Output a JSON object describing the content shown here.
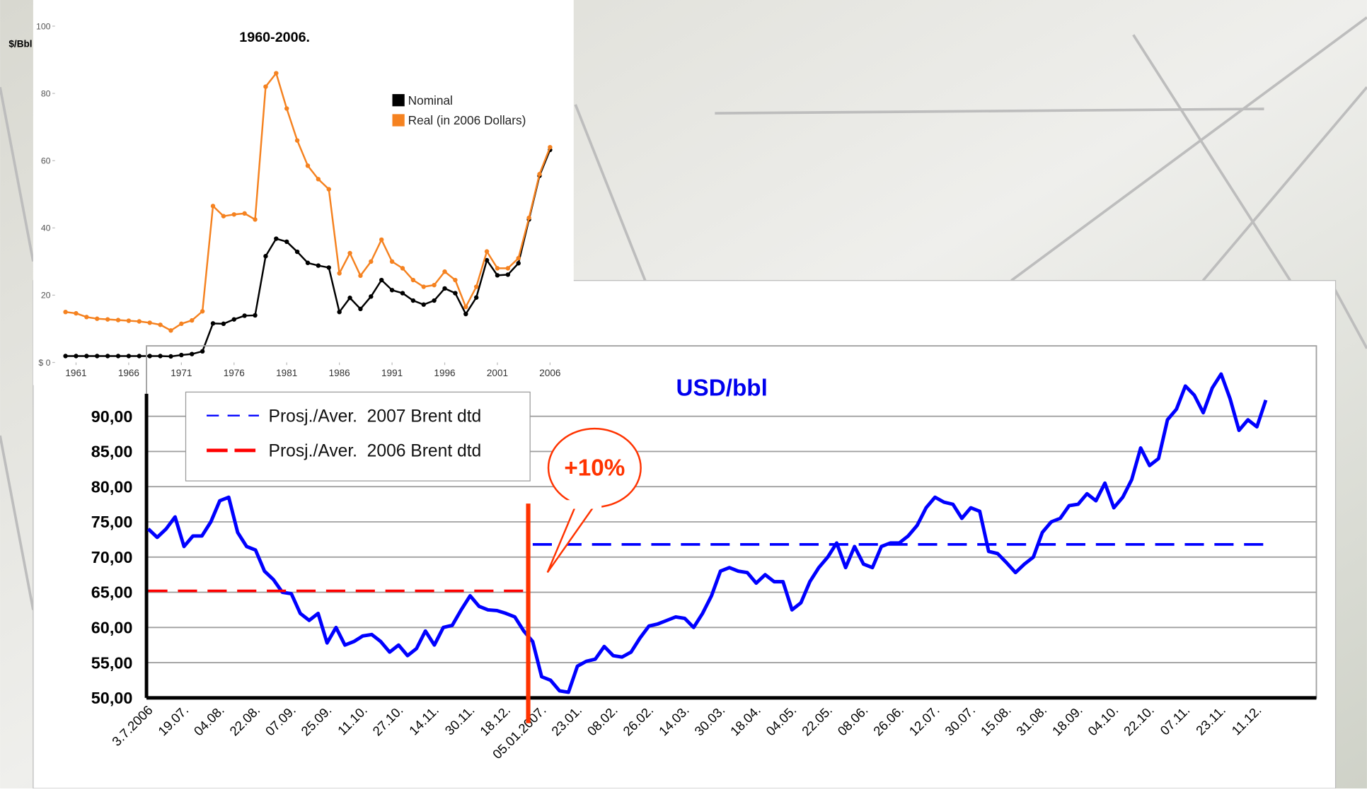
{
  "chart_data": [
    {
      "type": "line",
      "title": "1960-2006.",
      "y_label": "$/Bbl",
      "x": [
        1960,
        1961,
        1962,
        1963,
        1964,
        1965,
        1966,
        1967,
        1968,
        1969,
        1970,
        1971,
        1972,
        1973,
        1974,
        1975,
        1976,
        1977,
        1978,
        1979,
        1980,
        1981,
        1982,
        1983,
        1984,
        1985,
        1986,
        1987,
        1988,
        1989,
        1990,
        1991,
        1992,
        1993,
        1994,
        1995,
        1996,
        1997,
        1998,
        1999,
        2000,
        2001,
        2002,
        2003,
        2004,
        2005,
        2006
      ],
      "xlim": [
        1959,
        2007
      ],
      "xticks": [
        1961,
        1966,
        1971,
        1976,
        1981,
        1986,
        1991,
        1996,
        2001,
        2006
      ],
      "ylim": [
        0,
        100
      ],
      "yticks": [
        {
          "value": 0,
          "label": "$ 0"
        },
        20,
        40,
        60,
        80,
        100
      ],
      "grid": false,
      "legend": "upper right",
      "markers": true,
      "series": [
        {
          "name": "Nominal",
          "color": "#000000",
          "values": [
            1.9,
            1.9,
            1.9,
            1.9,
            1.9,
            1.9,
            1.9,
            1.9,
            1.9,
            1.9,
            1.8,
            2.2,
            2.5,
            3.3,
            11.6,
            11.5,
            12.8,
            13.9,
            14.0,
            31.6,
            36.8,
            35.9,
            32.9,
            29.6,
            28.8,
            28.2,
            15.0,
            19.2,
            15.9,
            19.6,
            24.5,
            21.5,
            20.6,
            18.4,
            17.2,
            18.4,
            22.0,
            20.6,
            14.4,
            19.3,
            30.4,
            25.9,
            26.1,
            29.5,
            42.5,
            55.5,
            63.2
          ]
        },
        {
          "name": "Real (in 2006 Dollars)",
          "color": "#f58220",
          "values": [
            15.0,
            14.6,
            13.5,
            13.0,
            12.8,
            12.6,
            12.4,
            12.2,
            11.8,
            11.2,
            9.5,
            11.5,
            12.5,
            15.2,
            46.5,
            43.5,
            44.0,
            44.3,
            42.5,
            82.0,
            86.0,
            75.5,
            66.0,
            58.5,
            54.5,
            51.5,
            26.5,
            32.5,
            25.8,
            30.0,
            36.5,
            30.0,
            28.0,
            24.5,
            22.5,
            23.0,
            27.0,
            24.5,
            16.5,
            22.5,
            33.0,
            28.0,
            28.0,
            31.0,
            43.0,
            56.0,
            64.0
          ]
        }
      ]
    },
    {
      "type": "line",
      "title": "USD/bbl",
      "annotation": "+10%",
      "categories": [
        "3.7.2006",
        null,
        null,
        null,
        "19.07.",
        null,
        null,
        null,
        "04.08.",
        null,
        null,
        null,
        "22.08.",
        null,
        null,
        null,
        "07.09.",
        null,
        null,
        null,
        "25.09.",
        null,
        null,
        null,
        "11.10.",
        null,
        null,
        null,
        "27.10.",
        null,
        null,
        null,
        "14.11.",
        null,
        null,
        null,
        "30.11.",
        null,
        null,
        null,
        "18.12.",
        null,
        null,
        null,
        "05.01.2007.",
        null,
        null,
        null,
        "23.01.",
        null,
        null,
        null,
        "08.02.",
        null,
        null,
        null,
        "26.02.",
        null,
        null,
        null,
        "14.03.",
        null,
        null,
        null,
        "30.03.",
        null,
        null,
        null,
        "18.04.",
        null,
        null,
        null,
        "04.05.",
        null,
        null,
        null,
        "22.05.",
        null,
        null,
        null,
        "08.06.",
        null,
        null,
        null,
        "26.06.",
        null,
        null,
        null,
        "12.07.",
        null,
        null,
        null,
        "30.07.",
        null,
        null,
        null,
        "15.08.",
        null,
        null,
        null,
        "31.08.",
        null,
        null,
        null,
        "18.09.",
        null,
        null,
        null,
        "04.10.",
        null,
        null,
        null,
        "22.10.",
        null,
        null,
        null,
        "07.11.",
        null,
        null,
        null,
        "23.11.",
        null,
        null,
        null,
        "11.12.",
        null
      ],
      "ylim": [
        50,
        100
      ],
      "yticks": [
        {
          "value": 50,
          "label": "50,00"
        },
        {
          "value": 55,
          "label": "55,00"
        },
        {
          "value": 60,
          "label": "60,00"
        },
        {
          "value": 65,
          "label": "65,00"
        },
        {
          "value": 70,
          "label": "70,00"
        },
        {
          "value": 75,
          "label": "75,00"
        },
        {
          "value": 80,
          "label": "80,00"
        },
        {
          "value": 85,
          "label": "85,00"
        },
        {
          "value": 90,
          "label": "90,00"
        }
      ],
      "grid": true,
      "legend": "upper left",
      "series": [
        {
          "color": "#0000ff",
          "line_style": "solid",
          "values": [
            74,
            72.8,
            74,
            75.7,
            71.5,
            73,
            73,
            75,
            78,
            78.5,
            73.5,
            71.5,
            71,
            68,
            66.8,
            65,
            64.8,
            62,
            61,
            62,
            57.8,
            60,
            57.5,
            58,
            58.8,
            59,
            58,
            56.5,
            57.5,
            56,
            57,
            59.5,
            57.5,
            60,
            60.3,
            62.5,
            64.5,
            63,
            62.5,
            62.4,
            62,
            61.5,
            59.5,
            58,
            53,
            52.5,
            51,
            50.8,
            54.5,
            55.2,
            55.5,
            57.3,
            56,
            55.8,
            56.5,
            58.5,
            60.2,
            60.5,
            61,
            61.5,
            61.3,
            60,
            62,
            64.5,
            68,
            68.5,
            68,
            67.8,
            66.3,
            67.5,
            66.5,
            66.5,
            62.5,
            63.5,
            66.5,
            68.5,
            70,
            72,
            68.5,
            71.5,
            69,
            68.5,
            71.5,
            72,
            72,
            73,
            74.5,
            77,
            78.5,
            77.8,
            77.5,
            75.5,
            77,
            76.5,
            70.8,
            70.5,
            69.2,
            67.8,
            69,
            70,
            73.5,
            75,
            75.5,
            77.3,
            77.5,
            79,
            78,
            80.5,
            77,
            78.5,
            81,
            85.5,
            83,
            84,
            89.5,
            91,
            94.3,
            93,
            90.5,
            94,
            96,
            92.5,
            88,
            89.5,
            88.5,
            92.3
          ]
        },
        {
          "name": "Prosj./Aver.  2006 Brent dtd",
          "color": "#ff0000",
          "line_style": "dashed",
          "values": [
            65.2,
            65.2,
            65.2,
            65.2,
            65.2,
            65.2,
            65.2,
            65.2,
            65.2,
            65.2,
            65.2,
            65.2,
            65.2,
            65.2,
            65.2,
            65.2,
            65.2,
            65.2,
            65.2,
            65.2,
            65.2,
            65.2,
            65.2,
            65.2,
            65.2,
            65.2,
            65.2,
            65.2,
            65.2,
            65.2,
            65.2,
            65.2,
            65.2,
            65.2,
            65.2,
            65.2,
            65.2,
            65.2,
            65.2,
            65.2,
            65.2,
            65.2,
            65.2,
            null,
            null,
            null,
            null,
            null,
            null,
            null,
            null,
            null,
            null,
            null,
            null,
            null,
            null,
            null,
            null,
            null,
            null,
            null,
            null,
            null,
            null,
            null,
            null,
            null,
            null,
            null,
            null,
            null,
            null,
            null,
            null,
            null,
            null,
            null,
            null,
            null,
            null,
            null,
            null,
            null,
            null,
            null,
            null,
            null,
            null,
            null,
            null,
            null,
            null,
            null,
            null,
            null,
            null,
            null,
            null,
            null,
            null,
            null,
            null,
            null,
            null,
            null,
            null,
            null,
            null,
            null,
            null,
            null,
            null,
            null,
            null,
            null,
            null,
            null,
            null,
            null,
            null,
            null,
            null,
            null,
            null,
            null
          ]
        },
        {
          "name": "Prosj./Aver.  2007 Brent dtd",
          "color": "#0000ff",
          "line_style": "dashed",
          "values": [
            null,
            null,
            null,
            null,
            null,
            null,
            null,
            null,
            null,
            null,
            null,
            null,
            null,
            null,
            null,
            null,
            null,
            null,
            null,
            null,
            null,
            null,
            null,
            null,
            null,
            null,
            null,
            null,
            null,
            null,
            null,
            null,
            null,
            null,
            null,
            null,
            null,
            null,
            null,
            null,
            null,
            null,
            null,
            71.8,
            71.8,
            71.8,
            71.8,
            71.8,
            71.8,
            71.8,
            71.8,
            71.8,
            71.8,
            71.8,
            71.8,
            71.8,
            71.8,
            71.8,
            71.8,
            71.8,
            71.8,
            71.8,
            71.8,
            71.8,
            71.8,
            71.8,
            71.8,
            71.8,
            71.8,
            71.8,
            71.8,
            71.8,
            71.8,
            71.8,
            71.8,
            71.8,
            71.8,
            71.8,
            71.8,
            71.8,
            71.8,
            71.8,
            71.8,
            71.8,
            71.8,
            71.8,
            71.8,
            71.8,
            71.8,
            71.8,
            71.8,
            71.8,
            71.8,
            71.8,
            71.8,
            71.8,
            71.8,
            71.8,
            71.8,
            71.8,
            71.8,
            71.8,
            71.8,
            71.8,
            71.8,
            71.8,
            71.8,
            71.8,
            71.8,
            71.8,
            71.8,
            71.8,
            71.8,
            71.8,
            71.8,
            71.8,
            71.8,
            71.8,
            71.8,
            71.8,
            71.8,
            71.8,
            71.8,
            71.8,
            71.8,
            71.8
          ]
        }
      ]
    }
  ]
}
